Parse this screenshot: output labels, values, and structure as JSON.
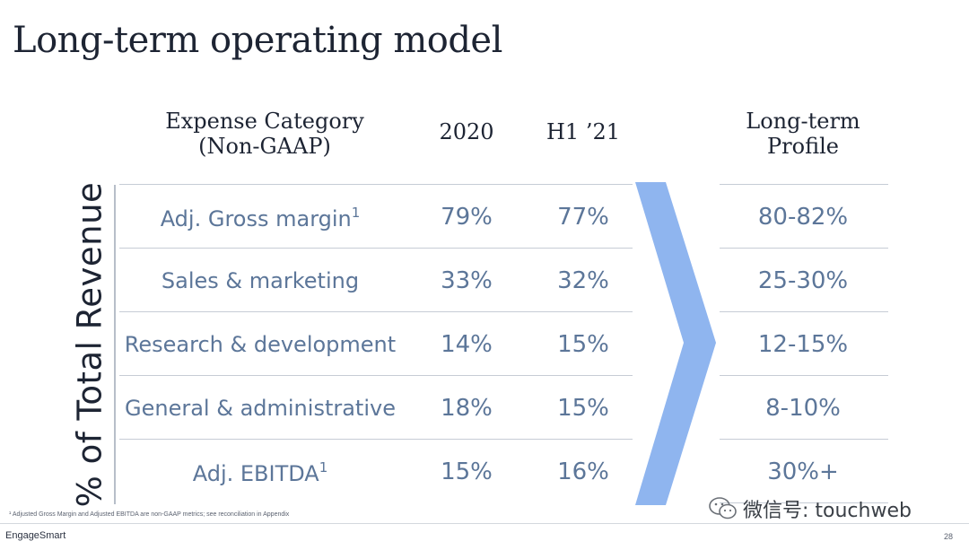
{
  "title": "Long-term operating model",
  "headers": {
    "category_line1": "Expense Category",
    "category_line2": "(Non-GAAP)",
    "col_2020": "2020",
    "col_h1": "H1 ’21",
    "profile_line1": "Long-term",
    "profile_line2": "Profile"
  },
  "y_axis_label": "% of Total Revenue",
  "rows": [
    {
      "category": "Adj. Gross margin",
      "sup": "1",
      "v2020": "79%",
      "h1": "77%",
      "profile": "80-82%"
    },
    {
      "category": "Sales & marketing",
      "sup": "",
      "v2020": "33%",
      "h1": "32%",
      "profile": "25-30%"
    },
    {
      "category": "Research & development",
      "sup": "",
      "v2020": "14%",
      "h1": "15%",
      "profile": "12-15%"
    },
    {
      "category": "General & administrative",
      "sup": "",
      "v2020": "18%",
      "h1": "15%",
      "profile": "8-10%"
    },
    {
      "category": "Adj. EBITDA",
      "sup": "1",
      "v2020": "15%",
      "h1": "16%",
      "profile": "30%+"
    }
  ],
  "footnote": "¹ Adjusted Gross Margin and Adjusted EBITDA are non-GAAP metrics; see reconciliation in Appendix",
  "brand": "EngageSmart",
  "page_number": "28",
  "watermark": "微信号: touchweb",
  "colors": {
    "value_text": "#5c7699",
    "chevron": "#8fb5ef",
    "title_text": "#1d2433"
  }
}
